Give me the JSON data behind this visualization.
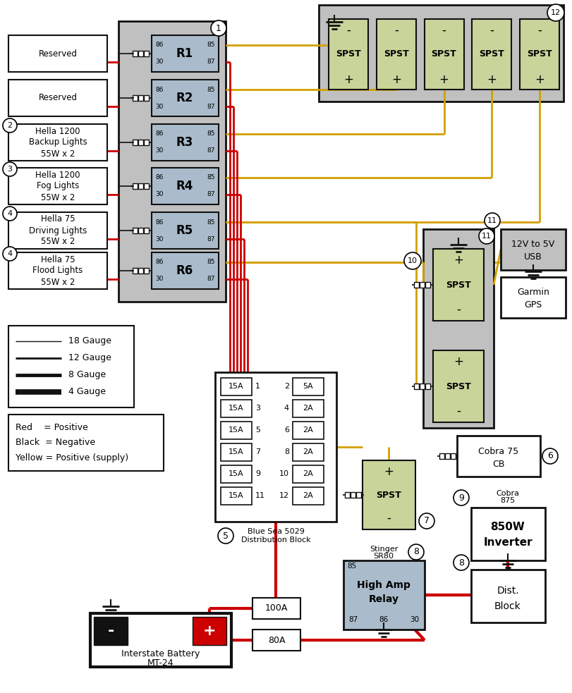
{
  "bg": "#ffffff",
  "gray": "#c0c0c0",
  "blue_relay": "#aabccc",
  "green_spst": "#c8d49a",
  "red": "#cc0000",
  "yellow": "#d4a000",
  "black": "#111111",
  "relay_names": [
    "R1",
    "R2",
    "R3",
    "R4",
    "R5",
    "R6"
  ],
  "left_labels": [
    "Reserved",
    "Reserved",
    "Hella 1200\nBackup Lights\n55W x 2",
    "Hella 1200\nFog Lights\n55W x 2",
    "Hella 75\nDriving Lights\n55W x 2",
    "Hella 75\nFlood Lights\n55W x 2"
  ],
  "left_nums": [
    "",
    "",
    "2",
    "3",
    "4",
    "4"
  ],
  "fuse_left": [
    "15A",
    "15A",
    "15A",
    "15A",
    "15A",
    "15A"
  ],
  "fuse_right": [
    "5A",
    "2A",
    "2A",
    "2A",
    "2A",
    "2A"
  ],
  "fuse_nl": [
    1,
    3,
    5,
    7,
    9,
    11
  ],
  "fuse_nr": [
    2,
    4,
    6,
    8,
    10,
    12
  ]
}
